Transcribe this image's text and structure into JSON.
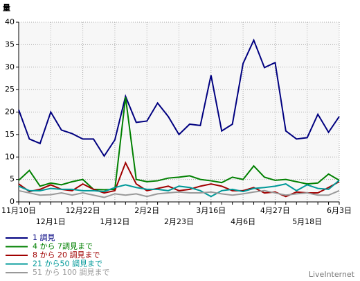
{
  "chart_data": {
    "type": "line",
    "y_label": "量",
    "watermark": "LiveInternet",
    "categories": [
      "11月10日",
      null,
      null,
      "12月1日",
      null,
      null,
      "12月22日",
      null,
      null,
      "1月12日",
      null,
      null,
      "2月2日",
      null,
      null,
      "2月23日",
      null,
      null,
      "3月16日",
      null,
      null,
      "4月6日",
      null,
      null,
      "4月27日",
      null,
      null,
      "5月18日",
      null,
      null,
      "6月3日"
    ],
    "ylim": [
      0,
      40
    ],
    "yticks": [
      0,
      5,
      10,
      15,
      20,
      25,
      30,
      35,
      40
    ],
    "grid": true,
    "legend": "bottom-left",
    "series": [
      {
        "name": "1 調見",
        "color": "#000080",
        "values": [
          20.5,
          14,
          13,
          20,
          16,
          15.2,
          14,
          14,
          10.2,
          13.8,
          23.5,
          17.7,
          18,
          22,
          19,
          15,
          17.3,
          17,
          28.2,
          15.8,
          17.3,
          30.8,
          36,
          29.9,
          31,
          15.8,
          14,
          14.3,
          19.5,
          15.5,
          19
        ]
      },
      {
        "name": "4 から 7調見まで",
        "color": "#008000",
        "values": [
          4.8,
          7,
          3.5,
          4.2,
          3.8,
          4.5,
          5,
          2.8,
          2.7,
          2.8,
          23.3,
          5,
          4.5,
          4.7,
          5.3,
          5.5,
          5.8,
          5,
          4.7,
          4.3,
          5.5,
          5,
          8,
          5.5,
          4.8,
          5,
          4.5,
          4,
          4.2,
          6.2,
          4.8
        ]
      },
      {
        "name": "8 から 20 調見まで",
        "color": "#a00000",
        "values": [
          4,
          2.3,
          2.8,
          3.8,
          2.8,
          2.5,
          4,
          2.8,
          2,
          2.5,
          8.7,
          4,
          2.5,
          3,
          3.5,
          2.5,
          2.8,
          3.5,
          4,
          3.5,
          2.5,
          2.5,
          3.2,
          2,
          2.2,
          1.2,
          2.2,
          2,
          2,
          3.2,
          4.5
        ]
      },
      {
        "name": "21 から50 調見まで",
        "color": "#009999",
        "values": [
          3.5,
          2.5,
          2.5,
          3,
          2.8,
          2.8,
          2.5,
          2.5,
          2.3,
          3.2,
          3.8,
          3.2,
          2.8,
          2.8,
          2.5,
          3.5,
          3.2,
          2.5,
          1.2,
          2.5,
          2.8,
          2.3,
          3,
          3.2,
          3.5,
          4,
          2.5,
          3.8,
          3,
          2.8,
          4.8
        ]
      },
      {
        "name": "51 から 100 調見まで",
        "color": "#999999",
        "values": [
          2.5,
          2,
          1.5,
          1.6,
          2,
          1.5,
          2,
          1.5,
          1,
          1.8,
          1.5,
          1.8,
          1.2,
          1.8,
          2,
          2.2,
          2,
          2,
          2.2,
          1.8,
          1.5,
          1.8,
          2.2,
          2.5,
          2,
          1.5,
          1.8,
          2,
          1.5,
          1.5,
          2.5
        ]
      }
    ]
  }
}
